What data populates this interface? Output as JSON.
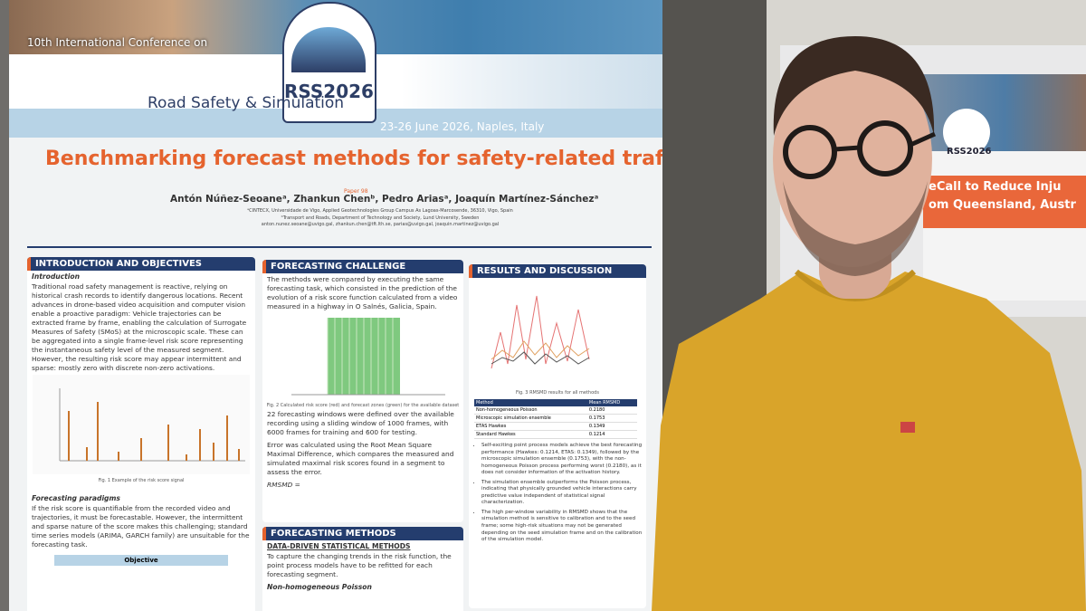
{
  "header": {
    "edition": "10th International Conference on",
    "logo": "RSS2026",
    "conference": "Road Safety & Simulation",
    "dates": "23-26 June 2026, Naples, Italy"
  },
  "poster": {
    "title": "Benchmarking forecast methods for safety-related traffic states",
    "paper": "Paper 98",
    "authors": "Antón Núñez-Seoaneᵃ, Zhankun Chenᵇ, Pedro Ariasᵃ, Joaquín Martínez-Sánchezᵃ",
    "affiliations": [
      "ᵃCINTECX, Universidade de Vigo, Applied Geotechnologies Group Campus As Lagoas-Marcosende, 36310, Vigo, Spain",
      "ᵇTransport and Roads, Department of Technology and Society, Lund University, Sweden",
      "anton.nunez.seoane@uvigo.gal, zhankun.chen@tft.lth.se, parias@uvigo.gal, joaquin.martinez@uvigo.gal"
    ],
    "introduction": {
      "heading": "INTRODUCTION AND OBJECTIVES",
      "subheading": "Introduction",
      "text": "Traditional road safety management is reactive, relying on historical crash records to identify dangerous locations. Recent advances in drone-based video acquisition and computer vision enable a proactive paradigm: Vehicle trajectories can be extracted frame by frame, enabling the calculation of Surrogate Measures of Safety (SMoS) at the microscopic scale. These can be aggregated into a single frame-level risk score representing the instantaneous safety level of the measured segment. However, the resulting risk score may appear intermittent and sparse: mostly zero with discrete non-zero activations.",
      "figure": "Fig. 1 Example of the risk score signal",
      "subheading2": "Forecasting paradigms",
      "text2": "If the risk score is quantifiable from the recorded video and trajectories, it must be forecastable. However, the intermittent and sparse nature of the score makes this challenging; standard time series models (ARIMA, GARCH family) are unsuitable for the forecasting task.",
      "objective": "Objective"
    },
    "challenge": {
      "heading": "FORECASTING CHALLENGE",
      "text": "The methods were compared by executing the same forecasting task, which consisted in the prediction of the evolution of a risk score function calculated from a video measured in a highway in O Salnés, Galicia, Spain.",
      "figure": "Fig. 2 Calculated risk score (red) and forecast zones (green) for the available dataset",
      "text2": "22 forecasting windows were defined over the available recording using a sliding window of 1000 frames, with 6000 frames for training and 600 for testing.",
      "text3": "Error was calculated using the Root Mean Square Maximal Difference, which compares the measured and simulated maximal risk scores found in a segment to assess the error.",
      "formula": "RMSMD ="
    },
    "methods": {
      "heading": "FORECASTING METHODS",
      "subheading": "DATA-DRIVEN STATISTICAL METHODS",
      "text": "To capture the changing trends in the risk function, the point process models have to be refitted for each forecasting segment.",
      "subheading2": "Non-homogeneous Poisson"
    },
    "results": {
      "heading": "RESULTS AND DISCUSSION",
      "figure": "Fig. 3 RMSMD results for all methods",
      "table": {
        "header": [
          "Method",
          "Mean RMSMD"
        ],
        "rows": [
          [
            "Non-homogeneous Poisson",
            "0.2180"
          ],
          [
            "Microscopic simulation ensemble",
            "0.1753"
          ],
          [
            "ETAS Hawkes",
            "0.1349"
          ],
          [
            "Standard Hawkes",
            "0.1214"
          ]
        ]
      },
      "bullets": [
        "Self-exciting point process models achieve the best forecasting performance (Hawkes: 0.1214, ETAS: 0.1349), followed by the microscopic simulation ensemble (0.1753), with the non-homogeneous Poisson process performing worst (0.2180), as it does not consider information of the activation history.",
        "The simulation ensemble outperforms the Poisson process, indicating that physically grounded vehicle interactions carry predictive value independent of statistical signal characterization.",
        "The high per-window variability in RMSMD shows that the simulation method is sensitive to calibration and to the seed frame; some high-risk situations may not be generated depending on the seed simulation frame and on the calibration of the simulation model."
      ]
    }
  },
  "background_poster": {
    "logo": "RSS2026",
    "lines": [
      "eCall to Reduce Inju",
      "om Queensland, Austr"
    ]
  }
}
